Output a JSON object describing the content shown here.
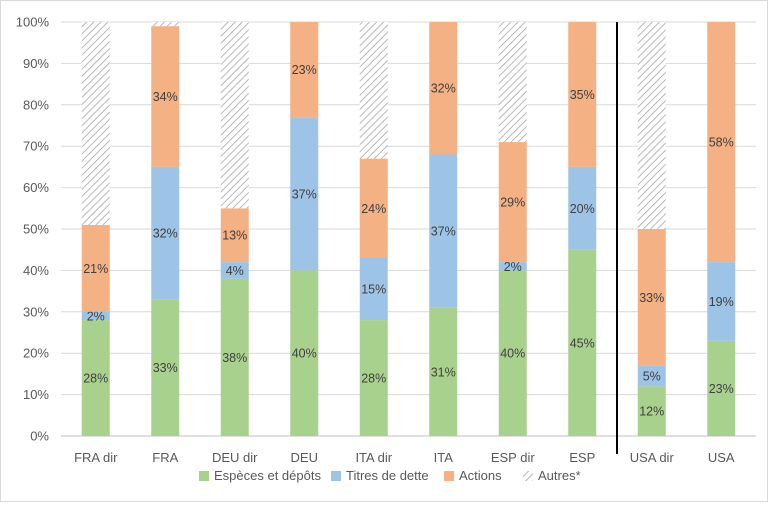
{
  "chart_data": {
    "type": "bar",
    "stacked": true,
    "categories": [
      "FRA dir",
      "FRA",
      "DEU dir",
      "DEU",
      "ITA dir",
      "ITA",
      "ESP dir",
      "ESP",
      "USA dir",
      "USA"
    ],
    "series": [
      {
        "name": "Espèces et dépôts",
        "color": "#a9d18e",
        "pattern": "solid",
        "values": [
          28,
          33,
          38,
          40,
          28,
          31,
          40,
          45,
          12,
          23
        ],
        "labels": [
          "28%",
          "33%",
          "38%",
          "40%",
          "28%",
          "31%",
          "40%",
          "45%",
          "12%",
          "23%"
        ]
      },
      {
        "name": "Titres de dette",
        "color": "#9dc3e6",
        "pattern": "solid",
        "values": [
          2,
          32,
          4,
          37,
          15,
          37,
          2,
          20,
          5,
          19
        ],
        "labels": [
          "2%",
          "32%",
          "4%",
          "37%",
          "15%",
          "37%",
          "2%",
          "20%",
          "5%",
          "19%"
        ]
      },
      {
        "name": "Actions",
        "color": "#f4b183",
        "pattern": "solid",
        "values": [
          21,
          34,
          13,
          23,
          24,
          32,
          29,
          35,
          33,
          58
        ],
        "labels": [
          "21%",
          "34%",
          "13%",
          "23%",
          "24%",
          "32%",
          "29%",
          "35%",
          "33%",
          "58%"
        ]
      },
      {
        "name": "Autres*",
        "color": "#a6a6a6",
        "pattern": "hatch",
        "values": [
          49,
          1,
          45,
          0,
          33,
          0,
          29,
          0,
          50,
          0
        ],
        "labels": [
          "",
          "",
          "",
          "",
          "",
          "",
          "",
          "",
          "",
          ""
        ]
      }
    ],
    "ylim": [
      0,
      100
    ],
    "yticks": [
      "0%",
      "10%",
      "20%",
      "30%",
      "40%",
      "50%",
      "60%",
      "70%",
      "80%",
      "90%",
      "100%"
    ],
    "separator_after_category": "ESP",
    "grid": true,
    "legend_position": "bottom",
    "xlabel": "",
    "ylabel": ""
  }
}
